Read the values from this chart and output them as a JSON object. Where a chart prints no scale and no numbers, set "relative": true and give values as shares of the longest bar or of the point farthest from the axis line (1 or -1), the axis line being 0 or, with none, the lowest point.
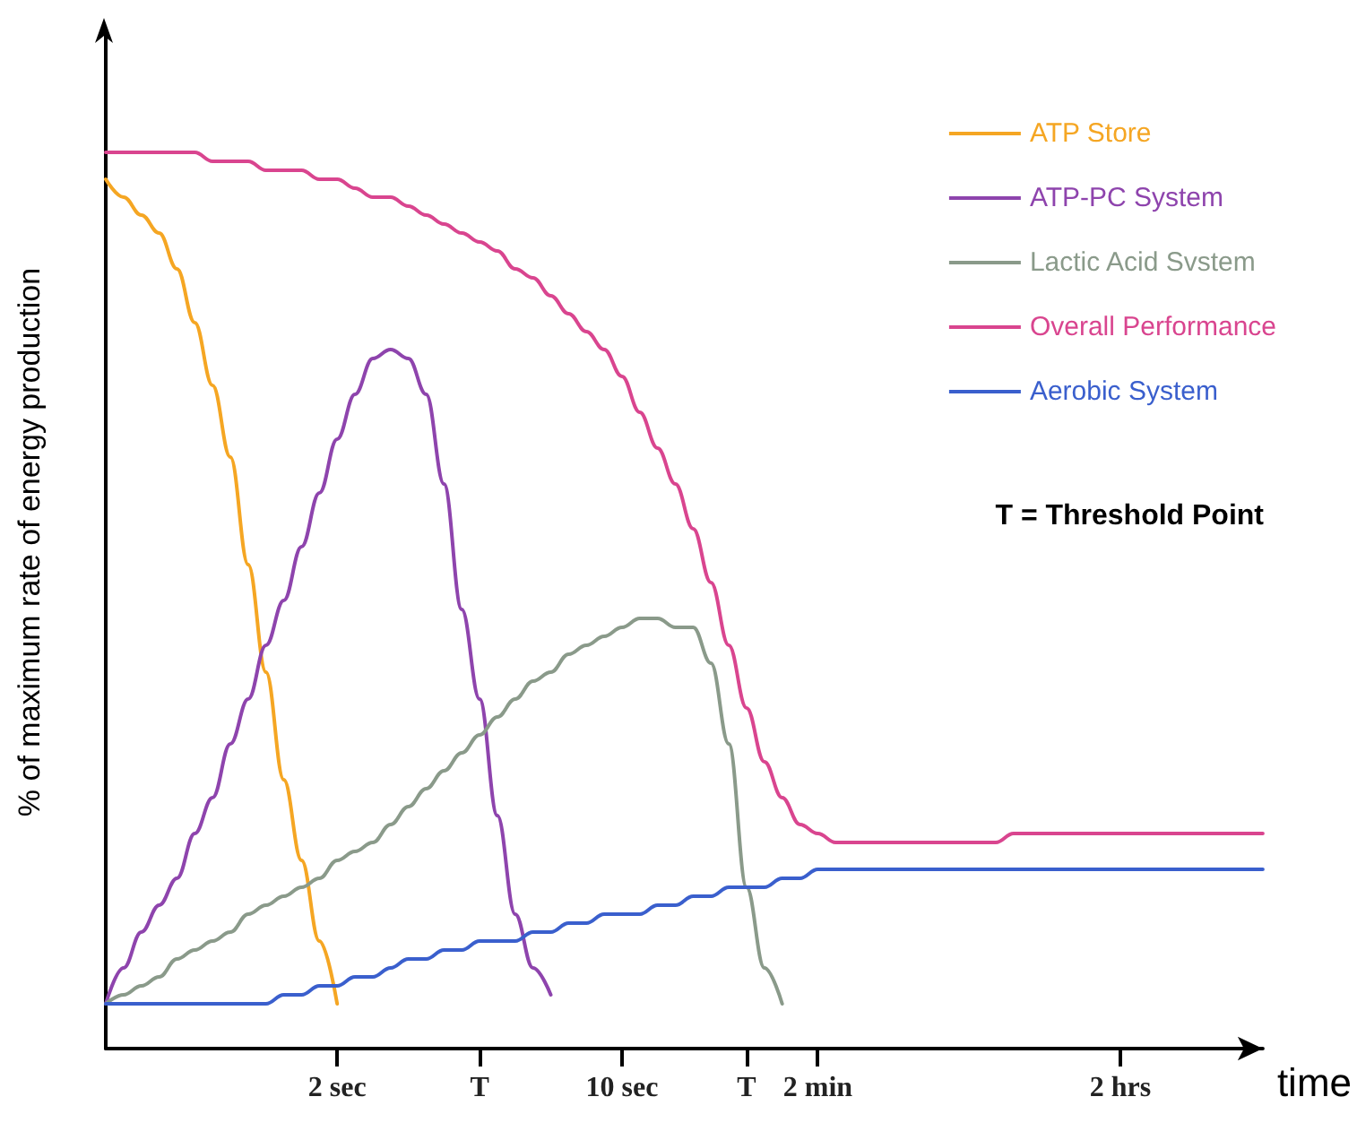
{
  "chart_data": {
    "type": "line",
    "relative": true,
    "xlabel": "time",
    "ylabel": "% of maximum rate of energy production",
    "categories": [
      null,
      null,
      null,
      null,
      null,
      null,
      null,
      null,
      null,
      null,
      null,
      null,
      null,
      "2 sec",
      null,
      null,
      null,
      null,
      null,
      null,
      null,
      "T",
      null,
      null,
      null,
      null,
      null,
      null,
      null,
      "10 sec",
      null,
      null,
      null,
      null,
      null,
      null,
      "T",
      null,
      null,
      null,
      "2 min",
      null,
      null,
      null,
      null,
      null,
      null,
      null,
      null,
      null,
      null,
      null,
      null,
      null,
      null,
      null,
      null,
      "2 hrs",
      null,
      null,
      null,
      null,
      null,
      null,
      null,
      null
    ],
    "series": [
      {
        "name": "ATP Store",
        "color": "#f5a623",
        "values": [
          0.97,
          0.95,
          0.93,
          0.91,
          0.87,
          0.81,
          0.74,
          0.66,
          0.54,
          0.42,
          0.3,
          0.21,
          0.12,
          0.05,
          null,
          null,
          null,
          null,
          null,
          null,
          null,
          null,
          null,
          null,
          null,
          null,
          null,
          null,
          null,
          null,
          null,
          null,
          null,
          null,
          null,
          null,
          null,
          null,
          null,
          null,
          null,
          null,
          null,
          null,
          null,
          null,
          null,
          null,
          null,
          null,
          null,
          null,
          null,
          null,
          null,
          null,
          null,
          null,
          null,
          null,
          null,
          null,
          null,
          null,
          null,
          null
        ]
      },
      {
        "name": "ATP-PC System",
        "color": "#8e44ad",
        "values": [
          0.05,
          0.09,
          0.13,
          0.16,
          0.19,
          0.24,
          0.28,
          0.34,
          0.39,
          0.45,
          0.5,
          0.56,
          0.62,
          0.68,
          0.73,
          0.77,
          0.78,
          0.77,
          0.73,
          0.63,
          0.49,
          0.39,
          0.26,
          0.15,
          0.09,
          0.06,
          null,
          null,
          null,
          null,
          null,
          null,
          null,
          null,
          null,
          null,
          null,
          null,
          null,
          null,
          null,
          null,
          null,
          null,
          null,
          null,
          null,
          null,
          null,
          null,
          null,
          null,
          null,
          null,
          null,
          null,
          null,
          null,
          null,
          null,
          null,
          null,
          null,
          null,
          null,
          null
        ]
      },
      {
        "name": "Lactic Acid Svstem",
        "color": "#8a9a8a",
        "values": [
          0.05,
          0.06,
          0.07,
          0.08,
          0.1,
          0.11,
          0.12,
          0.13,
          0.15,
          0.16,
          0.17,
          0.18,
          0.19,
          0.21,
          0.22,
          0.23,
          0.25,
          0.27,
          0.29,
          0.31,
          0.33,
          0.35,
          0.37,
          0.39,
          0.41,
          0.42,
          0.44,
          0.45,
          0.46,
          0.47,
          0.48,
          0.48,
          0.47,
          0.47,
          0.43,
          0.34,
          0.18,
          0.09,
          0.05,
          null,
          null,
          null,
          null,
          null,
          null,
          null,
          null,
          null,
          null,
          null,
          null,
          null,
          null,
          null,
          null,
          null,
          null,
          null,
          null,
          null,
          null,
          null,
          null,
          null,
          null,
          null
        ]
      },
      {
        "name": "Overall Performance",
        "color": "#d9458f",
        "values": [
          1.0,
          1.0,
          1.0,
          1.0,
          1.0,
          1.0,
          0.99,
          0.99,
          0.99,
          0.98,
          0.98,
          0.98,
          0.97,
          0.97,
          0.96,
          0.95,
          0.95,
          0.94,
          0.93,
          0.92,
          0.91,
          0.9,
          0.89,
          0.87,
          0.86,
          0.84,
          0.82,
          0.8,
          0.78,
          0.75,
          0.71,
          0.67,
          0.63,
          0.58,
          0.52,
          0.45,
          0.38,
          0.32,
          0.28,
          0.25,
          0.24,
          0.23,
          0.23,
          0.23,
          0.23,
          0.23,
          0.23,
          0.23,
          0.23,
          0.23,
          0.23,
          0.24,
          0.24,
          0.24,
          0.24,
          0.24,
          0.24,
          0.24,
          0.24,
          0.24,
          0.24,
          0.24,
          0.24,
          0.24,
          0.24,
          0.24
        ]
      },
      {
        "name": "Aerobic System",
        "color": "#3a5fcd",
        "values": [
          0.05,
          0.05,
          0.05,
          0.05,
          0.05,
          0.05,
          0.05,
          0.05,
          0.05,
          0.05,
          0.06,
          0.06,
          0.07,
          0.07,
          0.08,
          0.08,
          0.09,
          0.1,
          0.1,
          0.11,
          0.11,
          0.12,
          0.12,
          0.12,
          0.13,
          0.13,
          0.14,
          0.14,
          0.15,
          0.15,
          0.15,
          0.16,
          0.16,
          0.17,
          0.17,
          0.18,
          0.18,
          0.18,
          0.19,
          0.19,
          0.2,
          0.2,
          0.2,
          0.2,
          0.2,
          0.2,
          0.2,
          0.2,
          0.2,
          0.2,
          0.2,
          0.2,
          0.2,
          0.2,
          0.2,
          0.2,
          0.2,
          0.2,
          0.2,
          0.2,
          0.2,
          0.2,
          0.2,
          0.2,
          0.2,
          0.2
        ]
      }
    ],
    "legend": "top right",
    "marker": "none",
    "grid": false,
    "annotations": [
      "T = Threshold Point"
    ]
  }
}
